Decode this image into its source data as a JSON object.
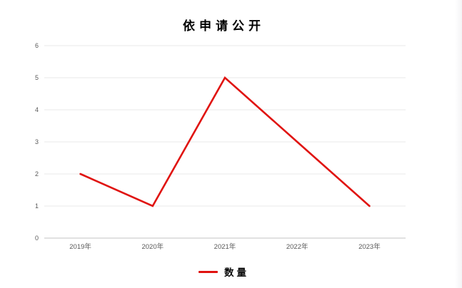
{
  "window": {
    "edge_color": "#f4f4f6"
  },
  "chart_data": {
    "type": "line",
    "title": "依申请公开",
    "categories": [
      "2019年",
      "2020年",
      "2021年",
      "2022年",
      "2023年"
    ],
    "series": [
      {
        "name": "数量",
        "values": [
          2,
          1,
          5,
          3,
          1
        ],
        "color": "#e01310"
      }
    ],
    "xlabel": "",
    "ylabel": "",
    "ylim": [
      0,
      6
    ],
    "yticks": [
      0,
      1,
      2,
      3,
      4,
      5,
      6
    ],
    "grid": "horizontal",
    "markers": false,
    "legend_position": "bottom",
    "colors": {
      "line": "#e01310",
      "gridline": "#e9e9e9",
      "axis_line": "#cfcfcf",
      "tick_text": "#595959",
      "title_text": "#000000"
    }
  }
}
